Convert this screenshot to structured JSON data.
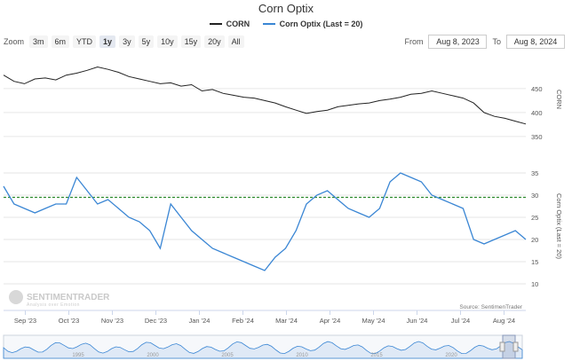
{
  "title": "Corn Optix",
  "legend": [
    {
      "name": "CORN",
      "color": "#222222"
    },
    {
      "name": "Corn Optix (Last = 20)",
      "color": "#3a86d4"
    }
  ],
  "zoom": {
    "label": "Zoom",
    "buttons": [
      "3m",
      "6m",
      "YTD",
      "1y",
      "3y",
      "5y",
      "10y",
      "15y",
      "20y",
      "All"
    ],
    "active": "1y"
  },
  "range": {
    "from_label": "From",
    "from_value": "Aug 8, 2023",
    "to_label": "To",
    "to_value": "Aug 8, 2024"
  },
  "credit": "Source: SentimenTrader",
  "watermark": {
    "line1": "SENTIMENTRADER",
    "line2": "Analysis over Emotion"
  },
  "navigator_ticks": [
    "1995",
    "2000",
    "2005",
    "2010",
    "2015",
    "2020"
  ],
  "chart_data": [
    {
      "type": "line",
      "name": "CORN",
      "yaxis_title": "CORN",
      "yticks": [
        350,
        400,
        450
      ],
      "ylim": [
        335,
        520
      ],
      "x_ticks": [
        "Sep '23",
        "Oct '23",
        "Nov '23",
        "Dec '23",
        "Jan '24",
        "Feb '24",
        "Mar '24",
        "Apr '24",
        "May '24",
        "Jun '24",
        "Jul '24",
        "Aug '24"
      ],
      "x": [
        0,
        0.02,
        0.04,
        0.06,
        0.08,
        0.1,
        0.12,
        0.14,
        0.16,
        0.18,
        0.2,
        0.22,
        0.24,
        0.26,
        0.28,
        0.3,
        0.32,
        0.34,
        0.36,
        0.38,
        0.4,
        0.42,
        0.44,
        0.46,
        0.48,
        0.5,
        0.52,
        0.54,
        0.56,
        0.58,
        0.6,
        0.62,
        0.64,
        0.66,
        0.68,
        0.7,
        0.72,
        0.74,
        0.76,
        0.78,
        0.8,
        0.82,
        0.84,
        0.86,
        0.88,
        0.9,
        0.92,
        0.94,
        0.96,
        0.98,
        1.0
      ],
      "values": [
        478,
        465,
        460,
        470,
        472,
        468,
        478,
        482,
        488,
        495,
        490,
        484,
        475,
        470,
        465,
        460,
        462,
        455,
        458,
        445,
        448,
        440,
        436,
        432,
        430,
        425,
        420,
        412,
        405,
        398,
        402,
        405,
        412,
        415,
        418,
        420,
        425,
        428,
        432,
        438,
        440,
        445,
        440,
        435,
        430,
        420,
        400,
        392,
        388,
        382,
        376
      ]
    },
    {
      "type": "line",
      "name": "Corn Optix (Last = 20)",
      "yaxis_title": "Corn Optix (Last = 20)",
      "yticks": [
        10,
        15,
        20,
        25,
        30,
        35
      ],
      "ylim": [
        8,
        38
      ],
      "reference_line": 29.5,
      "x": [
        0,
        0.02,
        0.04,
        0.06,
        0.08,
        0.1,
        0.12,
        0.14,
        0.16,
        0.18,
        0.2,
        0.22,
        0.24,
        0.26,
        0.28,
        0.3,
        0.32,
        0.34,
        0.36,
        0.38,
        0.4,
        0.42,
        0.44,
        0.46,
        0.48,
        0.5,
        0.52,
        0.54,
        0.56,
        0.58,
        0.6,
        0.62,
        0.64,
        0.66,
        0.68,
        0.7,
        0.72,
        0.74,
        0.76,
        0.78,
        0.8,
        0.82,
        0.84,
        0.86,
        0.88,
        0.9,
        0.92,
        0.94,
        0.96,
        0.98,
        1.0
      ],
      "values": [
        32,
        28,
        27,
        26,
        27,
        28,
        28,
        34,
        31,
        28,
        29,
        27,
        25,
        24,
        22,
        18,
        28,
        25,
        22,
        20,
        18,
        17,
        16,
        15,
        14,
        13,
        16,
        18,
        22,
        28,
        30,
        31,
        29,
        27,
        26,
        25,
        27,
        33,
        35,
        34,
        33,
        30,
        29,
        28,
        27,
        20,
        19,
        20,
        21,
        22,
        20
      ]
    }
  ]
}
